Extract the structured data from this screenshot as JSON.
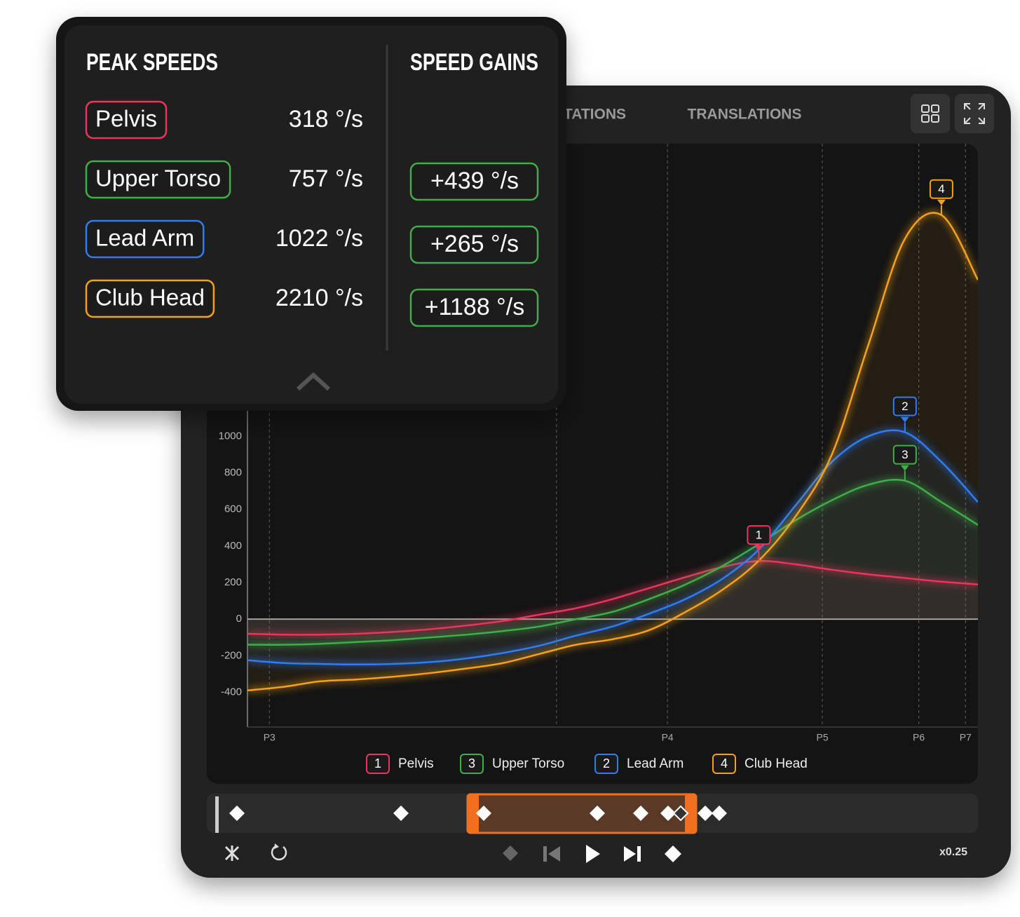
{
  "tabs": [
    "ROTATIONS",
    "TRANSLATIONS"
  ],
  "speed": "x0.25",
  "popup": {
    "peak_title": "PEAK SPEEDS",
    "gain_title": "SPEED GAINS",
    "rows": [
      {
        "name": "Pelvis",
        "peak": "318 °/s",
        "color": "#e8365d"
      },
      {
        "name": "Upper Torso",
        "peak": "757 °/s",
        "gain": "+439 °/s",
        "color": "#3fae49"
      },
      {
        "name": "Lead Arm",
        "peak": "1022 °/s",
        "gain": "+265 °/s",
        "color": "#2f7df0"
      },
      {
        "name": "Club Head",
        "peak": "2210 °/s",
        "gain": "+1188 °/s",
        "color": "#f5a11c"
      }
    ]
  },
  "chart_data": {
    "type": "line",
    "x": [
      0,
      5,
      10,
      15,
      20,
      25,
      30,
      35,
      40,
      45,
      50,
      55,
      60,
      65,
      70,
      75,
      80,
      85,
      90,
      95,
      100
    ],
    "xlim": [
      0,
      100
    ],
    "xticks": [
      {
        "value": 3,
        "label": "P3"
      },
      {
        "value": 42.3,
        "label": null
      },
      {
        "value": 57.5,
        "label": "P4"
      },
      {
        "value": 78.7,
        "label": "P5"
      },
      {
        "value": 91.9,
        "label": "P6"
      },
      {
        "value": 98.3,
        "label": "P7"
      }
    ],
    "ylim": [
      -590,
      2600
    ],
    "yticks": [
      -400,
      -200,
      0,
      200,
      400,
      600,
      800,
      1000
    ],
    "series": [
      {
        "name": "Pelvis",
        "badge": "1",
        "color": "#e8365d",
        "values": [
          -80,
          -85,
          -85,
          -80,
          -70,
          -55,
          -35,
          -10,
          25,
          60,
          110,
          170,
          230,
          285,
          318,
          300,
          270,
          245,
          225,
          205,
          190
        ]
      },
      {
        "name": "Upper Torso",
        "badge": "3",
        "color": "#3fae49",
        "values": [
          -140,
          -140,
          -135,
          -125,
          -115,
          -100,
          -85,
          -65,
          -40,
          0,
          40,
          110,
          190,
          290,
          410,
          540,
          650,
          735,
          757,
          640,
          515
        ]
      },
      {
        "name": "Lead Arm",
        "badge": "2",
        "color": "#2f7df0",
        "values": [
          -225,
          -240,
          -245,
          -248,
          -245,
          -235,
          -215,
          -185,
          -145,
          -90,
          -40,
          30,
          110,
          220,
          380,
          620,
          860,
          1000,
          1022,
          860,
          640
        ]
      },
      {
        "name": "Club Head",
        "badge": "4",
        "color": "#f5a11c",
        "values": [
          -390,
          -370,
          -340,
          -330,
          -315,
          -295,
          -270,
          -240,
          -190,
          -140,
          -110,
          -60,
          40,
          160,
          320,
          560,
          900,
          1500,
          2080,
          2210,
          1855
        ]
      }
    ]
  }
}
